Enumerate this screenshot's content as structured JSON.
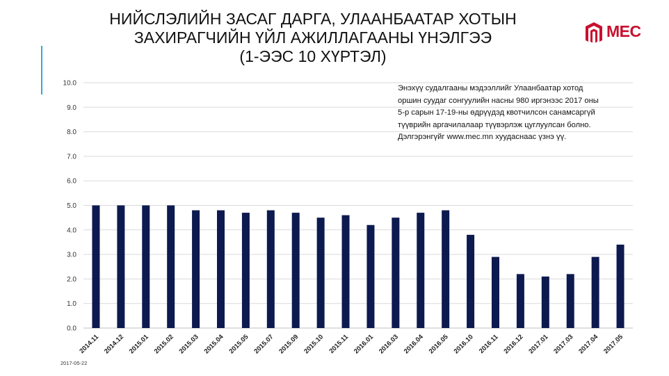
{
  "title_lines": [
    "НИЙСЛЭЛИЙН ЗАСАГ ДАРГА, УЛААНБААТАР ХОТЫН",
    "ЗАХИРАГЧИЙН ҮЙЛ АЖИЛЛАГААНЫ ҮНЭЛГЭЭ",
    "(1-ЭЭС 10 ХҮРТЭЛ)"
  ],
  "logo_text": "MEC",
  "note_lines": [
    "Энэхүү судалгааны мэдээллийг Улаанбаатар хотод",
    "оршин суудаг сонгуулийн насны 980 иргэнээс 2017 оны",
    "5-р сарын 17-19-ны өдрүүдэд квотчилсон санамсаргүй",
    "түүврийн аргачилалаар түүвэрлэж цуглуулсан болно.",
    "Дэлгэрэнгүйг www.mec.mn хуудаснаас үзнэ үү."
  ],
  "date": "2017-05-22",
  "colors": {
    "bar": "#0d1a4f",
    "accent": "#3aa3d8",
    "logo": "#c8102e",
    "grid": "#d9d9d9"
  },
  "chart_data": {
    "type": "bar",
    "title": "",
    "xlabel": "",
    "ylabel": "",
    "ylim": [
      0,
      10
    ],
    "yticks": [
      "0.0",
      "1.0",
      "2.0",
      "3.0",
      "4.0",
      "5.0",
      "6.0",
      "7.0",
      "8.0",
      "9.0",
      "10.0"
    ],
    "grid": true,
    "categories": [
      "2014.11",
      "2014.12",
      "2015.01",
      "2015.02",
      "2015.03",
      "2015.04",
      "2015.05",
      "2015.07",
      "2015.09",
      "2015.10",
      "2015.11",
      "2016.01",
      "2016.03",
      "2016.04",
      "2016.05",
      "2016.10",
      "2016.11",
      "2016.12",
      "2017.01",
      "2017.03",
      "2017.04",
      "2017.05"
    ],
    "values": [
      5.0,
      5.0,
      5.0,
      5.0,
      4.8,
      4.8,
      4.7,
      4.8,
      4.7,
      4.5,
      4.6,
      4.2,
      4.5,
      4.7,
      4.8,
      3.8,
      2.9,
      2.2,
      2.1,
      2.2,
      2.9,
      3.4
    ]
  }
}
